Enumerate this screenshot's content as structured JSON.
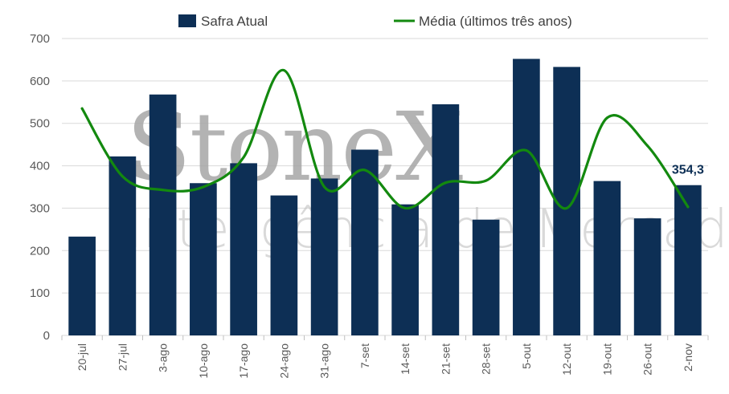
{
  "watermark": {
    "brand": "StoneX",
    "tagline": "Inteligência de Mercado"
  },
  "chart_data": {
    "type": "bar",
    "categories": [
      "20-jul",
      "27-jul",
      "3-ago",
      "10-ago",
      "17-ago",
      "24-ago",
      "31-ago",
      "7-set",
      "14-set",
      "21-set",
      "28-set",
      "5-out",
      "12-out",
      "19-out",
      "26-out",
      "2-nov"
    ],
    "series": [
      {
        "name": "Safra Atual",
        "type": "bar",
        "color": "#0d2f55",
        "values": [
          233,
          422,
          568,
          359,
          406,
          330,
          370,
          438,
          309,
          545,
          273,
          652,
          633,
          364,
          276,
          354.3
        ]
      },
      {
        "name": "Média (últimos três anos)",
        "type": "line",
        "color": "#13890f",
        "values": [
          535,
          375,
          343,
          350,
          420,
          625,
          350,
          390,
          300,
          360,
          365,
          436,
          300,
          513,
          447,
          303
        ]
      }
    ],
    "data_labels": [
      {
        "category": "2-nov",
        "series": "Safra Atual",
        "text": "354,3"
      }
    ],
    "ylim": [
      0,
      700
    ],
    "yticks": [
      0,
      100,
      200,
      300,
      400,
      500,
      600,
      700
    ],
    "xlabel": "",
    "ylabel": "",
    "legend": "top-center",
    "grid": true
  }
}
